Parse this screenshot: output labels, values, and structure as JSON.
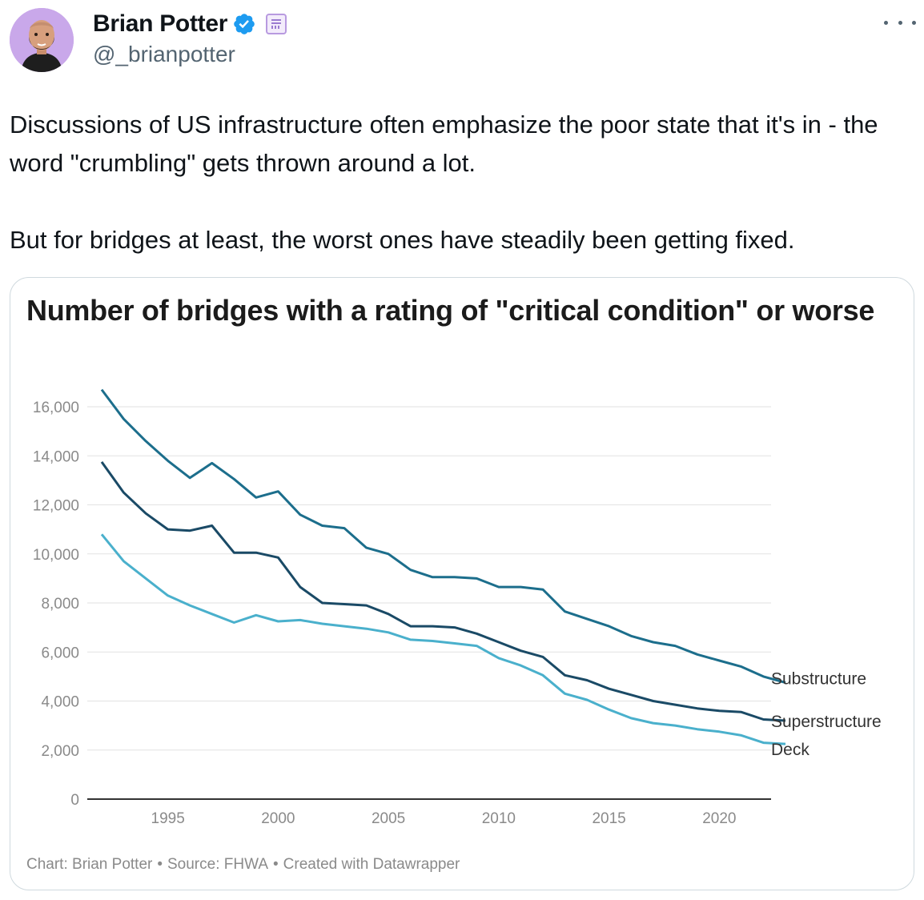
{
  "author": {
    "display_name": "Brian Potter",
    "handle": "@_brianpotter",
    "verified_icon": "verified-badge-icon",
    "affiliate_icon": "newsletter-affiliate-icon"
  },
  "tweet": {
    "paragraphs": [
      "Discussions of US infrastructure often emphasize the poor state that it's in - the word \"crumbling\" gets thrown around a lot.",
      "But for bridges at least, the worst ones have steadily been getting fixed."
    ]
  },
  "colors": {
    "verified": "#1d9bf0",
    "substructure": "#1c6e8c",
    "superstructure": "#1a4a66",
    "deck": "#4ab0cc"
  },
  "chart_data": {
    "type": "line",
    "title": "Number of bridges with a rating of \"critical condition\" or worse",
    "xlabel": "",
    "ylabel": "",
    "xlim": [
      1992,
      2023
    ],
    "ylim": [
      0,
      16000
    ],
    "xticks": [
      1995,
      2000,
      2005,
      2010,
      2015,
      2020
    ],
    "yticks": [
      0,
      2000,
      4000,
      6000,
      8000,
      10000,
      12000,
      14000,
      16000
    ],
    "ytick_labels": [
      "0",
      "2,000",
      "4,000",
      "6,000",
      "8,000",
      "10,000",
      "12,000",
      "14,000",
      "16,000"
    ],
    "grid": true,
    "legend": "direct labels at line ends",
    "x": [
      1992,
      1993,
      1994,
      1995,
      1996,
      1997,
      1998,
      1999,
      2000,
      2001,
      2002,
      2003,
      2004,
      2005,
      2006,
      2007,
      2008,
      2009,
      2010,
      2011,
      2012,
      2013,
      2014,
      2015,
      2016,
      2017,
      2018,
      2019,
      2020,
      2021,
      2022,
      2023
    ],
    "series": [
      {
        "name": "Substructure",
        "values": [
          16700,
          15500,
          14600,
          13800,
          13100,
          13700,
          13050,
          12300,
          12550,
          11600,
          11150,
          11050,
          10250,
          10000,
          9350,
          9050,
          9050,
          9000,
          8650,
          8650,
          8550,
          7650,
          7350,
          7050,
          6650,
          6400,
          6250,
          5900,
          5650,
          5400,
          5000,
          4750
        ]
      },
      {
        "name": "Superstructure",
        "values": [
          13750,
          12500,
          11650,
          11000,
          10950,
          11150,
          10050,
          10050,
          9850,
          8650,
          8000,
          7950,
          7900,
          7550,
          7050,
          7050,
          7000,
          6750,
          6400,
          6050,
          5800,
          5050,
          4850,
          4500,
          4250,
          4000,
          3850,
          3700,
          3600,
          3550,
          3250,
          3200
        ]
      },
      {
        "name": "Deck",
        "values": [
          10800,
          9700,
          9000,
          8300,
          7900,
          7550,
          7200,
          7500,
          7250,
          7300,
          7150,
          7050,
          6950,
          6800,
          6500,
          6450,
          6350,
          6250,
          5750,
          5450,
          5050,
          4300,
          4050,
          3650,
          3300,
          3100,
          3000,
          2850,
          2750,
          2600,
          2300,
          2250
        ]
      }
    ],
    "footer": [
      "Chart: Brian Potter",
      "Source: FHWA",
      "Created with Datawrapper"
    ],
    "footer_separator": "•"
  }
}
